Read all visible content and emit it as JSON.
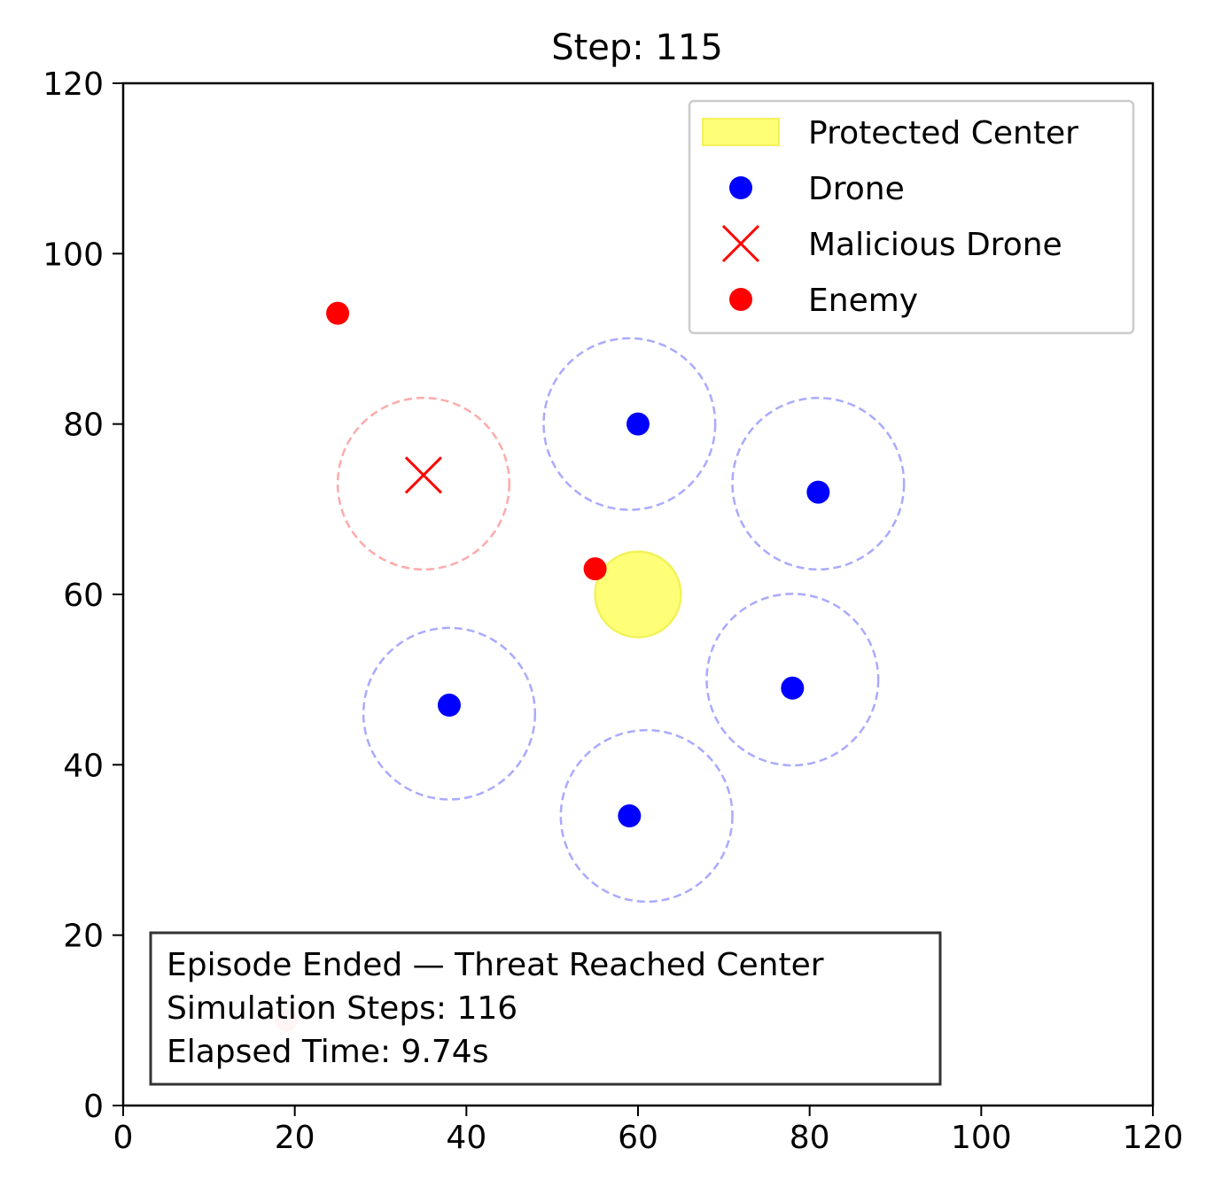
{
  "chart_data": {
    "type": "scatter",
    "title": "Step: 115",
    "xlabel": "",
    "ylabel": "",
    "xlim": [
      0,
      120
    ],
    "ylim": [
      0,
      120
    ],
    "xticks": [
      0,
      20,
      40,
      60,
      80,
      100,
      120
    ],
    "yticks": [
      0,
      20,
      40,
      60,
      80,
      100,
      120
    ],
    "grid": false,
    "legend_position": "top-right",
    "colors": {
      "drone": "#0000ff",
      "enemy": "#ff0000",
      "malicious": "#ff0000",
      "protected_fill": "#ffff77",
      "protected_edge": "#f2f25a",
      "drone_range": "#aaaaff",
      "malicious_range": "#ffaaaa",
      "faded_enemy": "#ffcccc"
    },
    "legend": [
      {
        "label": "Protected Center",
        "kind": "patch"
      },
      {
        "label": "Drone",
        "kind": "drone"
      },
      {
        "label": "Malicious Drone",
        "kind": "x"
      },
      {
        "label": "Enemy",
        "kind": "enemy"
      }
    ],
    "protected_center": {
      "x": 60,
      "y": 60,
      "radius": 5
    },
    "drones": [
      {
        "x": 60,
        "y": 80
      },
      {
        "x": 81,
        "y": 72
      },
      {
        "x": 38,
        "y": 47
      },
      {
        "x": 78,
        "y": 49
      },
      {
        "x": 59,
        "y": 34
      }
    ],
    "drone_ranges": [
      {
        "x": 59,
        "y": 80,
        "r": 10
      },
      {
        "x": 81,
        "y": 73,
        "r": 10
      },
      {
        "x": 38,
        "y": 46,
        "r": 10
      },
      {
        "x": 78,
        "y": 50,
        "r": 10
      },
      {
        "x": 61,
        "y": 34,
        "r": 10
      }
    ],
    "malicious_drone": {
      "x": 35,
      "y": 74
    },
    "malicious_range": {
      "x": 35,
      "y": 73,
      "r": 10
    },
    "enemies": [
      {
        "x": 25,
        "y": 93
      },
      {
        "x": 55,
        "y": 63
      }
    ],
    "faded_enemies": [
      {
        "x": 19,
        "y": 10
      }
    ],
    "annotation_lines": [
      "Episode Ended — Threat Reached Center",
      "Simulation Steps: 116",
      "Elapsed Time: 9.74s"
    ]
  }
}
